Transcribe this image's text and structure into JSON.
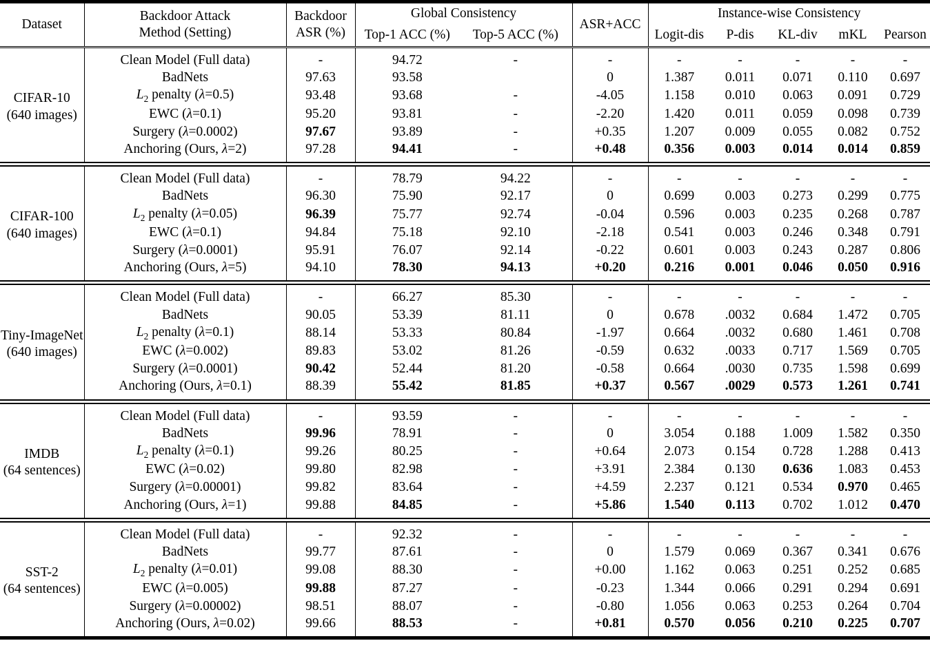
{
  "colors": {
    "text": "#000000",
    "background": "#ffffff",
    "rule": "#000000"
  },
  "table": {
    "header": {
      "dataset": "Dataset",
      "method_line1": "Backdoor Attack",
      "method_line2": "Method (Setting)",
      "asr_line1": "Backdoor",
      "asr_line2": "ASR (%)",
      "global": "Global Consistency",
      "top1": "Top-1 ACC (%)",
      "top5": "Top-5 ACC (%)",
      "asr_acc": "ASR+ACC",
      "instance": "Instance-wise Consistency",
      "metrics": [
        "Logit-dis",
        "P-dis",
        "KL-div",
        "mKL",
        "Pearson"
      ]
    },
    "column_keys": [
      "asr",
      "top1",
      "top5",
      "asr-acc",
      "logit-dis",
      "p-dis",
      "kl-div",
      "mkl",
      "pearson"
    ],
    "groups": [
      {
        "dataset": "CIFAR-10",
        "dataset_sub": "(640 images)",
        "rows": [
          {
            "method": "Clean Model (Full data)",
            "cells": [
              "-",
              "94.72",
              "-",
              "-",
              "-",
              "-",
              "-",
              "-",
              "-"
            ]
          },
          {
            "method": "BadNets",
            "cells": [
              "97.63",
              "93.58",
              "",
              "0",
              "1.387",
              "0.011",
              "0.071",
              "0.110",
              "0.697"
            ]
          },
          {
            "method": "L_2 penalty (λ=0.5)",
            "cells": [
              "93.48",
              "93.68",
              "-",
              "-4.05",
              "1.158",
              "0.010",
              "0.063",
              "0.091",
              "0.729"
            ]
          },
          {
            "method": "EWC (λ=0.1)",
            "cells": [
              "95.20",
              "93.81",
              "-",
              "-2.20",
              "1.420",
              "0.011",
              "0.059",
              "0.098",
              "0.739"
            ]
          },
          {
            "method": "Surgery (λ=0.0002)",
            "cells": [
              {
                "v": "97.67",
                "b": true
              },
              "93.89",
              "-",
              "+0.35",
              "1.207",
              "0.009",
              "0.055",
              "0.082",
              "0.752"
            ]
          },
          {
            "method": "Anchoring (Ours, λ=2)",
            "cells": [
              "97.28",
              {
                "v": "94.41",
                "b": true
              },
              "-",
              {
                "v": "+0.48",
                "b": true
              },
              {
                "v": "0.356",
                "b": true
              },
              {
                "v": "0.003",
                "b": true
              },
              {
                "v": "0.014",
                "b": true
              },
              {
                "v": "0.014",
                "b": true
              },
              {
                "v": "0.859",
                "b": true
              }
            ]
          }
        ]
      },
      {
        "dataset": "CIFAR-100",
        "dataset_sub": "(640 images)",
        "rows": [
          {
            "method": "Clean Model (Full data)",
            "cells": [
              "-",
              "78.79",
              "94.22",
              "-",
              "-",
              "-",
              "-",
              "-",
              "-"
            ]
          },
          {
            "method": "BadNets",
            "cells": [
              "96.30",
              "75.90",
              "92.17",
              "0",
              "0.699",
              "0.003",
              "0.273",
              "0.299",
              "0.775"
            ]
          },
          {
            "method": "L_2 penalty (λ=0.05)",
            "cells": [
              {
                "v": "96.39",
                "b": true
              },
              "75.77",
              "92.74",
              "-0.04",
              "0.596",
              "0.003",
              "0.235",
              "0.268",
              "0.787"
            ]
          },
          {
            "method": "EWC (λ=0.1)",
            "cells": [
              "94.84",
              "75.18",
              "92.10",
              "-2.18",
              "0.541",
              "0.003",
              "0.246",
              "0.348",
              "0.791"
            ]
          },
          {
            "method": "Surgery (λ=0.0001)",
            "cells": [
              "95.91",
              "76.07",
              "92.14",
              "-0.22",
              "0.601",
              "0.003",
              "0.243",
              "0.287",
              "0.806"
            ]
          },
          {
            "method": "Anchoring (Ours, λ=5)",
            "cells": [
              "94.10",
              {
                "v": "78.30",
                "b": true
              },
              {
                "v": "94.13",
                "b": true
              },
              {
                "v": "+0.20",
                "b": true
              },
              {
                "v": "0.216",
                "b": true
              },
              {
                "v": "0.001",
                "b": true
              },
              {
                "v": "0.046",
                "b": true
              },
              {
                "v": "0.050",
                "b": true
              },
              {
                "v": "0.916",
                "b": true
              }
            ]
          }
        ]
      },
      {
        "dataset": "Tiny-ImageNet",
        "dataset_sub": "(640 images)",
        "rows": [
          {
            "method": "Clean Model (Full data)",
            "cells": [
              "-",
              "66.27",
              "85.30",
              "-",
              "-",
              "-",
              "-",
              "-",
              "-"
            ]
          },
          {
            "method": "BadNets",
            "cells": [
              "90.05",
              "53.39",
              "81.11",
              "0",
              "0.678",
              ".0032",
              "0.684",
              "1.472",
              "0.705"
            ]
          },
          {
            "method": "L_2 penalty (λ=0.1)",
            "cells": [
              "88.14",
              "53.33",
              "80.84",
              "-1.97",
              "0.664",
              ".0032",
              "0.680",
              "1.461",
              "0.708"
            ]
          },
          {
            "method": "EWC (λ=0.002)",
            "cells": [
              "89.83",
              "53.02",
              "81.26",
              "-0.59",
              "0.632",
              ".0033",
              "0.717",
              "1.569",
              "0.705"
            ]
          },
          {
            "method": "Surgery (λ=0.0001)",
            "cells": [
              {
                "v": "90.42",
                "b": true
              },
              "52.44",
              "81.20",
              "-0.58",
              "0.664",
              ".0030",
              "0.735",
              "1.598",
              "0.699"
            ]
          },
          {
            "method": "Anchoring (Ours, λ=0.1)",
            "cells": [
              "88.39",
              {
                "v": "55.42",
                "b": true
              },
              {
                "v": "81.85",
                "b": true
              },
              {
                "v": "+0.37",
                "b": true
              },
              {
                "v": "0.567",
                "b": true
              },
              {
                "v": ".0029",
                "b": true
              },
              {
                "v": "0.573",
                "b": true
              },
              {
                "v": "1.261",
                "b": true
              },
              {
                "v": "0.741",
                "b": true
              }
            ]
          }
        ]
      },
      {
        "dataset": "IMDB",
        "dataset_sub": "(64 sentences)",
        "rows": [
          {
            "method": "Clean Model (Full data)",
            "cells": [
              "-",
              "93.59",
              "-",
              "-",
              "-",
              "-",
              "-",
              "-",
              "-"
            ]
          },
          {
            "method": "BadNets",
            "cells": [
              {
                "v": "99.96",
                "b": true
              },
              "78.91",
              "-",
              "0",
              "3.054",
              "0.188",
              "1.009",
              "1.582",
              "0.350"
            ]
          },
          {
            "method": "L_2 penalty (λ=0.1)",
            "cells": [
              "99.26",
              "80.25",
              "-",
              "+0.64",
              "2.073",
              "0.154",
              "0.728",
              "1.288",
              "0.413"
            ]
          },
          {
            "method": "EWC (λ=0.02)",
            "cells": [
              "99.80",
              "82.98",
              "-",
              "+3.91",
              "2.384",
              "0.130",
              {
                "v": "0.636",
                "b": true
              },
              "1.083",
              "0.453"
            ]
          },
          {
            "method": "Surgery (λ=0.00001)",
            "cells": [
              "99.82",
              "83.64",
              "-",
              "+4.59",
              "2.237",
              "0.121",
              "0.534",
              {
                "v": "0.970",
                "b": true
              },
              "0.465"
            ]
          },
          {
            "method": "Anchoring (Ours, λ=1)",
            "cells": [
              "99.88",
              {
                "v": "84.85",
                "b": true
              },
              "-",
              {
                "v": "+5.86",
                "b": true
              },
              {
                "v": "1.540",
                "b": true
              },
              {
                "v": "0.113",
                "b": true
              },
              "0.702",
              "1.012",
              {
                "v": "0.470",
                "b": true
              }
            ]
          }
        ]
      },
      {
        "dataset": "SST-2",
        "dataset_sub": "(64 sentences)",
        "rows": [
          {
            "method": "Clean Model (Full data)",
            "cells": [
              "-",
              "92.32",
              "-",
              "-",
              "-",
              "-",
              "-",
              "-",
              "-"
            ]
          },
          {
            "method": "BadNets",
            "cells": [
              "99.77",
              "87.61",
              "-",
              "0",
              "1.579",
              "0.069",
              "0.367",
              "0.341",
              "0.676"
            ]
          },
          {
            "method": "L_2 penalty (λ=0.01)",
            "cells": [
              "99.08",
              "88.30",
              "-",
              "+0.00",
              "1.162",
              "0.063",
              "0.251",
              "0.252",
              "0.685"
            ]
          },
          {
            "method": "EWC (λ=0.005)",
            "cells": [
              {
                "v": "99.88",
                "b": true
              },
              "87.27",
              "-",
              "-0.23",
              "1.344",
              "0.066",
              "0.291",
              "0.294",
              "0.691"
            ]
          },
          {
            "method": "Surgery (λ=0.00002)",
            "cells": [
              "98.51",
              "88.07",
              "-",
              "-0.80",
              "1.056",
              "0.063",
              "0.253",
              "0.264",
              "0.704"
            ]
          },
          {
            "method": "Anchoring (Ours, λ=0.02)",
            "cells": [
              "99.66",
              {
                "v": "88.53",
                "b": true
              },
              "-",
              {
                "v": "+0.81",
                "b": true
              },
              {
                "v": "0.570",
                "b": true
              },
              {
                "v": "0.056",
                "b": true
              },
              {
                "v": "0.210",
                "b": true
              },
              {
                "v": "0.225",
                "b": true
              },
              {
                "v": "0.707",
                "b": true
              }
            ]
          }
        ]
      }
    ]
  }
}
